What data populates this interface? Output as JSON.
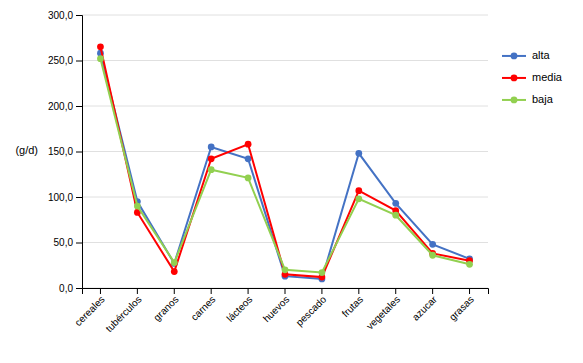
{
  "chart_data": {
    "type": "line",
    "ylabel": "(g/d)",
    "categories": [
      "cereales",
      "tubérculos",
      "granos",
      "carnes",
      "lácteos",
      "huevos",
      "pescado",
      "frutas",
      "vegetales",
      "azucar",
      "grasas"
    ],
    "series": [
      {
        "name": "alta",
        "color": "#4472C4",
        "values": [
          258,
          95,
          27,
          155,
          142,
          13,
          10,
          148,
          93,
          48,
          32
        ]
      },
      {
        "name": "media",
        "color": "#FF0000",
        "values": [
          265,
          83,
          18,
          142,
          158,
          15,
          12,
          107,
          85,
          38,
          30
        ]
      },
      {
        "name": "baja",
        "color": "#92D050",
        "values": [
          252,
          90,
          28,
          130,
          121,
          20,
          17,
          98,
          80,
          36,
          26
        ]
      }
    ],
    "ylim": [
      0,
      300
    ],
    "yticks": [
      {
        "value": 0,
        "label": "0,0"
      },
      {
        "value": 50,
        "label": "50,0"
      },
      {
        "value": 100,
        "label": "100,0"
      },
      {
        "value": 150,
        "label": "150,0"
      },
      {
        "value": 200,
        "label": "200,0"
      },
      {
        "value": 250,
        "label": "250,0"
      },
      {
        "value": 300,
        "label": "300,0"
      }
    ],
    "grid": true,
    "legend": "right",
    "marker": "circle"
  }
}
